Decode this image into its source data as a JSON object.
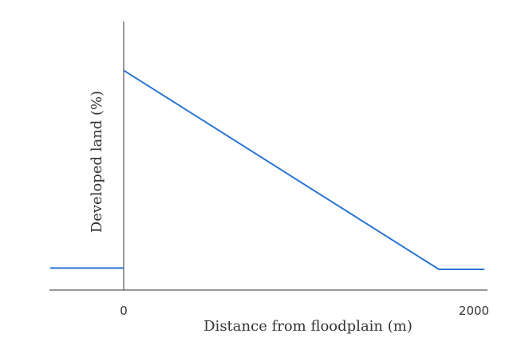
{
  "chart_data": {
    "type": "line",
    "title": "",
    "xlabel": "Distance from floodplain (m)",
    "ylabel": "Developed land (%)",
    "xlim": [
      -420,
      2060
    ],
    "x_ticks": [
      "0",
      "2000"
    ],
    "y_ticks": [],
    "grid": false,
    "legend": "none",
    "series": [
      {
        "color": "#2a75d4",
        "x": [
          -420,
          0
        ],
        "y": [
          9,
          9
        ]
      },
      {
        "color": "#2a75d4",
        "x": [
          0,
          1800,
          2060
        ],
        "y": [
          90,
          8.5,
          8.5
        ]
      }
    ]
  }
}
